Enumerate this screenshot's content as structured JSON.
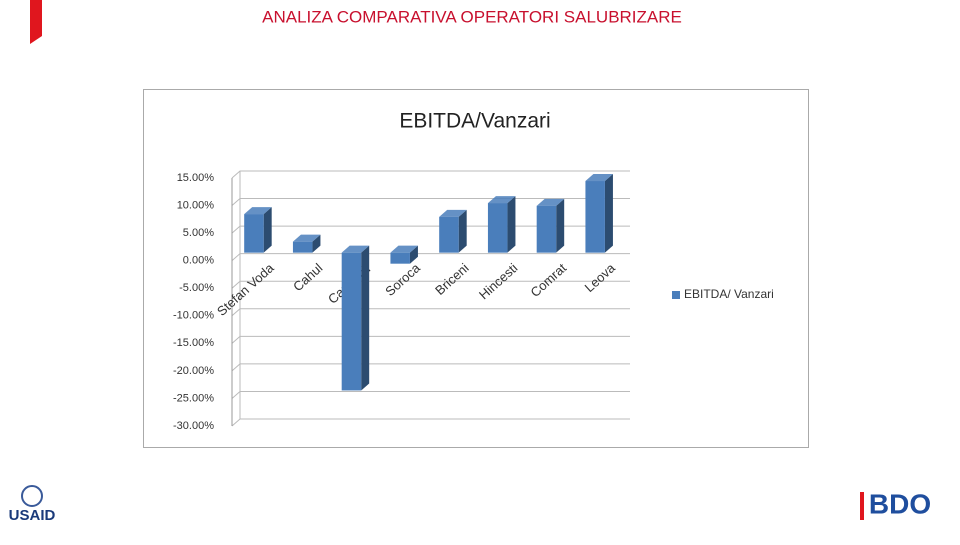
{
  "slide_title": "ANALIZA COMPARATIVA OPERATORI SALUBRIZARE",
  "chart_data": {
    "type": "bar3d",
    "title": "EBITDA/Vanzari",
    "categories": [
      "Stefan Voda",
      "Cahul",
      "Cantemir",
      "Soroca",
      "Briceni",
      "Hincesti",
      "Comrat",
      "Leova"
    ],
    "series": [
      {
        "name": "EBITDA/ Vanzari",
        "color": "#4a7ebb",
        "values": [
          7,
          2,
          -25,
          -2,
          6.5,
          9,
          8.5,
          13
        ]
      }
    ],
    "ylim": [
      -30,
      15
    ],
    "yticks": [
      {
        "value": 15,
        "label": "15.00%"
      },
      {
        "value": 10,
        "label": "10.00%"
      },
      {
        "value": 5,
        "label": "5.00%"
      },
      {
        "value": 0,
        "label": "0.00%"
      },
      {
        "value": -5,
        "label": "-5.00%"
      },
      {
        "value": -10,
        "label": "-10.00%"
      },
      {
        "value": -15,
        "label": "-15.00%"
      },
      {
        "value": -20,
        "label": "-20.00%"
      },
      {
        "value": -25,
        "label": "-25.00%"
      },
      {
        "value": -30,
        "label": "-30.00%"
      }
    ],
    "grid": true,
    "legend": "right"
  },
  "logos": {
    "left": "USAID",
    "right": "BDO"
  }
}
